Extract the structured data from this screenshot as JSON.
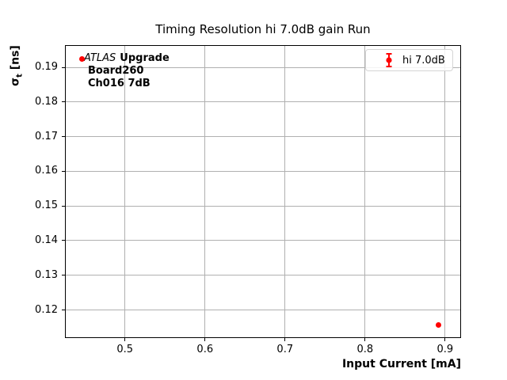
{
  "chart_data": {
    "type": "scatter",
    "title": "Timing Resolution hi 7.0dB gain Run",
    "xlabel": "Input Current [mA]",
    "ylabel": "σt [ns]",
    "ylabel_parts": {
      "symbol": "σ",
      "subscript": "t",
      "unit": " [ns]"
    },
    "xlim": [
      0.425,
      0.92
    ],
    "ylim": [
      0.1119,
      0.1964
    ],
    "xticks": [
      0.5,
      0.6,
      0.7,
      0.8,
      0.9
    ],
    "xtick_labels": [
      "0.5",
      "0.6",
      "0.7",
      "0.8",
      "0.9"
    ],
    "yticks": [
      0.12,
      0.13,
      0.14,
      0.15,
      0.16,
      0.17,
      0.18,
      0.19
    ],
    "ytick_labels": [
      "0.12",
      "0.13",
      "0.14",
      "0.15",
      "0.16",
      "0.17",
      "0.18",
      "0.19"
    ],
    "grid": true,
    "legend": {
      "position": "upper right",
      "entries": [
        {
          "label": "hi 7.0dB",
          "color": "#ff0000",
          "marker": "errorbar-dot"
        }
      ]
    },
    "series": [
      {
        "name": "hi 7.0dB",
        "color": "#ff0000",
        "points": [
          {
            "x": 0.446,
            "y": 0.1923,
            "yerr": 0.0005
          },
          {
            "x": 0.892,
            "y": 0.1157,
            "yerr": 0.0005
          }
        ]
      }
    ],
    "annotation": {
      "line1_italic": "ATLAS",
      "line1_bold": "Upgrade",
      "line2": "Board260",
      "line3": "Ch016 7dB"
    },
    "colors": {
      "series": "#ff0000",
      "grid": "#b0b0b0",
      "frame": "#000000",
      "legend_border": "#d5d5d5"
    }
  }
}
